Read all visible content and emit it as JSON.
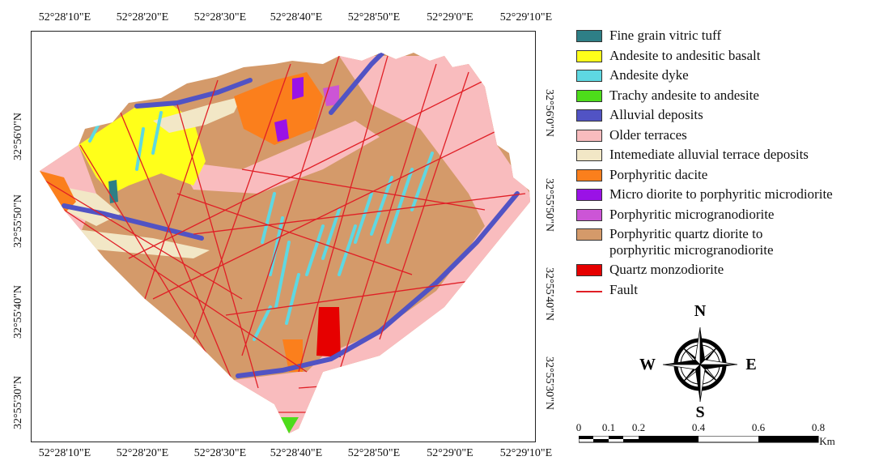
{
  "map": {
    "top_lon_labels": [
      "52°28'10\"E",
      "52°28'20\"E",
      "52°28'30\"E",
      "52°28'40\"E",
      "52°28'50\"E",
      "52°29'0\"E",
      "52°29'10\"E"
    ],
    "bottom_lon_labels": [
      "52°28'10\"E",
      "52°28'20\"E",
      "52°28'30\"E",
      "52°28'40\"E",
      "52°28'50\"E",
      "52°29'0\"E",
      "52°29'10\"E"
    ],
    "left_lat_labels": [
      "32°56'0\"N",
      "32°55'50\"N",
      "32°55'40\"N",
      "32°55'30\"N"
    ],
    "right_lat_labels": [
      "32°56'0\"N",
      "32°55'50\"N",
      "32°55'40\"N",
      "32°55'30\"N"
    ]
  },
  "legend": {
    "items": [
      {
        "label": "Fine grain vitric tuff",
        "color": "#2e7f86"
      },
      {
        "label": "Andesite to andesitic basalt",
        "color": "#ffff1a"
      },
      {
        "label": "Andesite dyke",
        "color": "#5ed8e2"
      },
      {
        "label": "Trachy andesite to andesite",
        "color": "#4ddc1a"
      },
      {
        "label": "Alluvial deposits",
        "color": "#5153c4"
      },
      {
        "label": "Older terraces",
        "color": "#f9bcbe"
      },
      {
        "label": "Intemediate alluvial terrace deposits",
        "color": "#f2e7c6"
      },
      {
        "label": "Porphyritic dacite",
        "color": "#fb7f1c"
      },
      {
        "label": "Micro diorite to porphyritic microdiorite",
        "color": "#9a12e6"
      },
      {
        "label": "Porphyritic microgranodiorite",
        "color": "#cc55d6"
      },
      {
        "label_line1": "Porphyritic quartz diorite to",
        "label_line2": "porphyritic microgranodiorite",
        "color": "#d49a6a"
      },
      {
        "label": "Quartz monzodiorite",
        "color": "#e60000"
      }
    ],
    "fault_label": "Fault",
    "fault_color": "#e01f26"
  },
  "compass": {
    "n": "N",
    "s": "S",
    "e": "E",
    "w": "W"
  },
  "scale_bar": {
    "ticks": [
      "0",
      "0.1",
      "0.2",
      "0.4",
      "0.6",
      "0.8"
    ],
    "unit": "Km"
  }
}
